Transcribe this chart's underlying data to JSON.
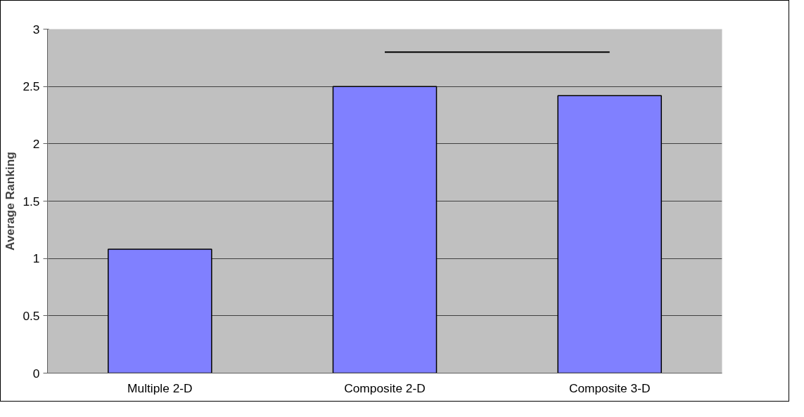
{
  "chart_data": {
    "type": "bar",
    "ylabel": "Average Ranking",
    "categories": [
      "Multiple 2-D",
      "Composite 2-D",
      "Composite 3-D"
    ],
    "series": [
      {
        "color": "#8080ff",
        "values": [
          1.08,
          2.5,
          2.42
        ]
      },
      {
        "type": "line",
        "color": "#000000",
        "x": [
          "Composite 2-D",
          "Composite 3-D"
        ],
        "values": [
          2.8,
          2.8
        ]
      }
    ],
    "ylim": [
      0,
      3
    ],
    "yticks": [
      0,
      0.5,
      1,
      1.5,
      2,
      2.5,
      3
    ],
    "grid": "y"
  }
}
